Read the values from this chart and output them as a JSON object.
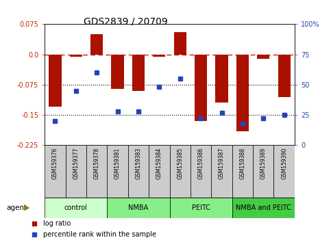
{
  "title": "GDS2839 / 20709",
  "samples": [
    "GSM159376",
    "GSM159377",
    "GSM159378",
    "GSM159381",
    "GSM159383",
    "GSM159384",
    "GSM159385",
    "GSM159386",
    "GSM159387",
    "GSM159388",
    "GSM159389",
    "GSM159390"
  ],
  "log_ratio": [
    -0.13,
    -0.005,
    0.05,
    -0.085,
    -0.09,
    -0.005,
    0.055,
    -0.165,
    -0.12,
    -0.19,
    -0.01,
    -0.105
  ],
  "percentile_rank": [
    20,
    45,
    60,
    28,
    28,
    48,
    55,
    22,
    27,
    18,
    22,
    25
  ],
  "groups": [
    {
      "label": "control",
      "color": "#ccffcc",
      "start": 0,
      "end": 3
    },
    {
      "label": "NMBA",
      "color": "#88ee88",
      "start": 3,
      "end": 6
    },
    {
      "label": "PEITC",
      "color": "#88ee88",
      "start": 6,
      "end": 9
    },
    {
      "label": "NMBA and PEITC",
      "color": "#44cc44",
      "start": 9,
      "end": 12
    }
  ],
  "ylim": [
    -0.225,
    0.075
  ],
  "yticks_left": [
    0.075,
    0.0,
    -0.075,
    -0.15,
    -0.225
  ],
  "yticks_right_vals": [
    0.075,
    0.0,
    -0.075,
    -0.15,
    -0.225
  ],
  "yticks_right_labels": [
    "100%",
    "75",
    "50",
    "25",
    "0"
  ],
  "hlines_dotted": [
    -0.075,
    -0.15
  ],
  "hline_dash": 0.0,
  "bar_color": "#aa1100",
  "dot_color": "#2244bb",
  "bar_width": 0.6,
  "legend_log_ratio": "log ratio",
  "legend_percentile": "percentile rank within the sample",
  "agent_label": "agent",
  "sample_box_color": "#cccccc",
  "left_axis_color": "#cc2200",
  "right_axis_color": "#2244bb"
}
